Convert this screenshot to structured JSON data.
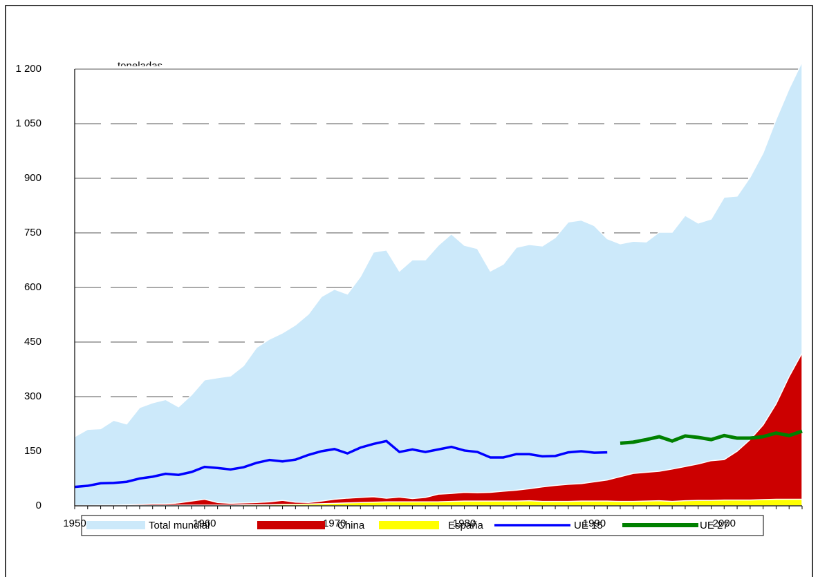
{
  "chart_data": {
    "type": "area",
    "unit_label": "toneladas",
    "x": [
      1950,
      1951,
      1952,
      1953,
      1954,
      1955,
      1956,
      1957,
      1958,
      1959,
      1960,
      1961,
      1962,
      1963,
      1964,
      1965,
      1966,
      1967,
      1968,
      1969,
      1970,
      1971,
      1972,
      1973,
      1974,
      1975,
      1976,
      1977,
      1978,
      1979,
      1980,
      1981,
      1982,
      1983,
      1984,
      1985,
      1986,
      1987,
      1988,
      1989,
      1990,
      1991,
      1992,
      1993,
      1994,
      1995,
      1996,
      1997,
      1998,
      1999,
      2000,
      2001,
      2002,
      2003,
      2004,
      2005,
      2006
    ],
    "xlim": [
      1950,
      2006
    ],
    "xticks": [
      1950,
      1960,
      1970,
      1980,
      1990,
      2000
    ],
    "ylim": [
      0,
      1200
    ],
    "yticks": [
      0,
      150,
      300,
      450,
      600,
      750,
      900,
      {
        "value": 1050,
        "label": "1 050"
      },
      {
        "value": 1200,
        "label": "1 200"
      }
    ],
    "grid": true,
    "legend": "bottom",
    "series": [
      {
        "name": "Total mundial",
        "kind": "area",
        "color": "#cce9fa",
        "values": [
          190,
          210,
          212,
          235,
          225,
          270,
          283,
          292,
          272,
          305,
          346,
          352,
          357,
          385,
          435,
          458,
          475,
          497,
          527,
          575,
          595,
          582,
          630,
          697,
          703,
          645,
          676,
          676,
          716,
          747,
          716,
          707,
          645,
          664,
          710,
          718,
          714,
          737,
          780,
          785,
          770,
          734,
          720,
          727,
          725,
          752,
          752,
          798,
          777,
          788,
          848,
          851,
          903,
          970,
          1062,
          1146,
          1220
        ]
      },
      {
        "name": "China",
        "kind": "area",
        "color": "#cc0000",
        "values": [
          0,
          1,
          2,
          2,
          3,
          4,
          5,
          5,
          8,
          13,
          18,
          9,
          7,
          8,
          9,
          11,
          15,
          10,
          9,
          13,
          18,
          21,
          23,
          25,
          21,
          24,
          20,
          23,
          32,
          34,
          37,
          36,
          37,
          40,
          43,
          47,
          52,
          56,
          59,
          61,
          66,
          71,
          80,
          89,
          92,
          95,
          101,
          108,
          115,
          124,
          127,
          150,
          182,
          222,
          280,
          355,
          420
        ]
      },
      {
        "name": "España",
        "kind": "area",
        "color": "#ffff00",
        "values": [
          1,
          1,
          1,
          1,
          1,
          1,
          1,
          1,
          2,
          2,
          2,
          2,
          2,
          3,
          3,
          3,
          4,
          4,
          5,
          6,
          7,
          8,
          9,
          10,
          11,
          11,
          11,
          11,
          11,
          12,
          13,
          13,
          13,
          13,
          13,
          14,
          12,
          12,
          12,
          13,
          13,
          13,
          12,
          12,
          13,
          14,
          12,
          14,
          15,
          15,
          16,
          16,
          16,
          17,
          18,
          18,
          18
        ]
      },
      {
        "name": "UE 15",
        "kind": "line",
        "color": "#0000ff",
        "values": [
          52,
          55,
          62,
          63,
          66,
          75,
          80,
          88,
          85,
          93,
          107,
          104,
          100,
          106,
          118,
          126,
          122,
          127,
          140,
          150,
          156,
          144,
          160,
          170,
          178,
          148,
          155,
          148,
          155,
          162,
          152,
          148,
          133,
          133,
          142,
          142,
          136,
          137,
          147,
          150,
          146,
          147,
          null,
          null,
          null,
          null,
          null,
          null,
          null,
          null,
          null,
          null,
          null,
          null,
          null,
          null,
          null
        ]
      },
      {
        "name": "UE 27",
        "kind": "line",
        "color": "#008000",
        "values": [
          null,
          null,
          null,
          null,
          null,
          null,
          null,
          null,
          null,
          null,
          null,
          null,
          null,
          null,
          null,
          null,
          null,
          null,
          null,
          null,
          null,
          null,
          null,
          null,
          null,
          null,
          null,
          null,
          null,
          null,
          null,
          null,
          null,
          null,
          null,
          null,
          null,
          null,
          null,
          null,
          null,
          null,
          172,
          175,
          182,
          190,
          178,
          192,
          188,
          182,
          193,
          186,
          186,
          190,
          200,
          193,
          205
        ]
      }
    ]
  }
}
